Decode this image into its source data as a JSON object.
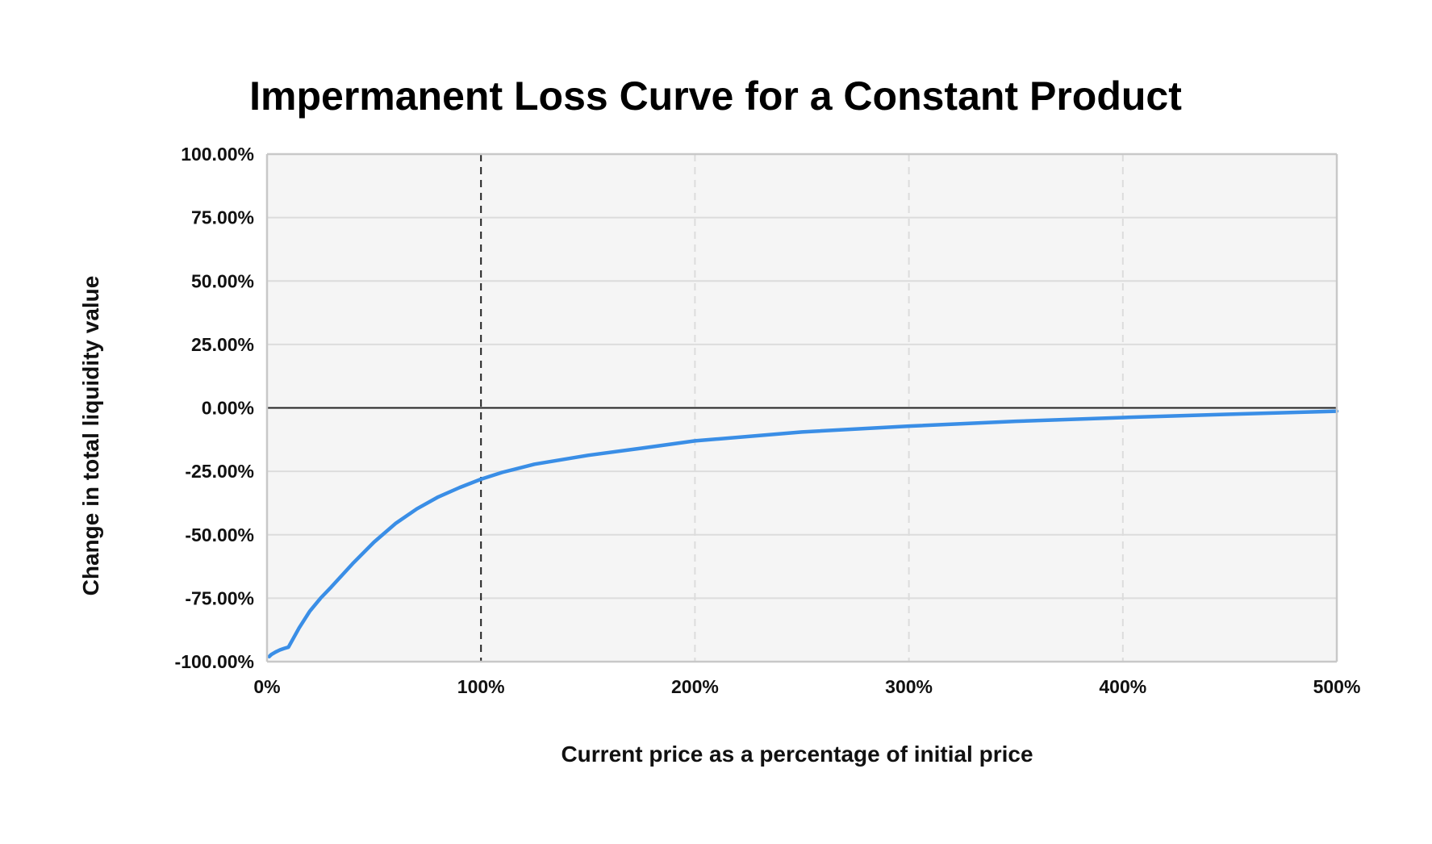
{
  "chart_data": {
    "type": "line",
    "title": "Impermanent Loss Curve for a Constant Product",
    "xlabel": "Current price as a percentage of initial price",
    "ylabel": "Change in total liquidity value",
    "xlim": [
      0,
      500
    ],
    "ylim": [
      -100,
      100
    ],
    "x_tick_values": [
      0,
      100,
      200,
      300,
      400,
      500
    ],
    "x_tick_labels": [
      "0%",
      "100%",
      "200%",
      "300%",
      "400%",
      "500%"
    ],
    "y_tick_values": [
      100,
      75,
      50,
      25,
      0,
      -25,
      -50,
      -75,
      -100
    ],
    "y_tick_labels": [
      "100.00%",
      "75.00%",
      "50.00%",
      "25.00%",
      "0.00%",
      "-25.00%",
      "-50.00%",
      "-75.00%",
      "-100.00%"
    ],
    "grid": true,
    "legend": "none",
    "reference_lines": {
      "horizontal_at_y": 0,
      "vertical_dashed_at_x": 100
    },
    "colors": {
      "line": "#3a8ee6",
      "plot_background": "#f5f5f5",
      "grid": "#dcdcdc",
      "zero_line": "#222222",
      "reference_dashed": "#222222"
    },
    "series": [
      {
        "x": [
          1,
          2,
          4,
          6,
          8,
          10,
          15,
          20,
          25,
          30,
          40,
          50,
          60,
          70,
          80,
          90,
          100,
          110,
          125,
          150,
          175,
          200,
          250,
          300,
          350,
          400,
          450,
          500
        ],
        "values": [
          -98.0,
          -97.2,
          -96.2,
          -95.4,
          -94.8,
          -94.3,
          -86.7,
          -80.1,
          -75.0,
          -70.6,
          -61.4,
          -52.9,
          -45.6,
          -39.8,
          -35.1,
          -31.4,
          -28.1,
          -25.4,
          -22.2,
          -18.7,
          -15.9,
          -13.0,
          -9.5,
          -7.2,
          -5.3,
          -3.8,
          -2.5,
          -1.3
        ]
      }
    ]
  }
}
